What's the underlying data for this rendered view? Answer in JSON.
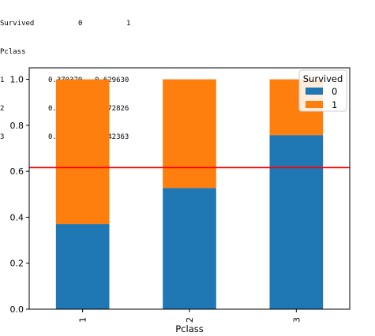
{
  "table": {
    "header": [
      "Survived",
      "0",
      "1"
    ],
    "index_name": "Pclass",
    "rows": [
      [
        "1",
        "0.370370",
        "0.629630"
      ],
      [
        "2",
        "0.527174",
        "0.472826"
      ],
      [
        "3",
        "0.757637",
        "0.242363"
      ]
    ]
  },
  "chart_data": {
    "type": "bar",
    "stacked": true,
    "categories": [
      "1",
      "2",
      "3"
    ],
    "series": [
      {
        "name": "0",
        "values": [
          0.37037,
          0.527174,
          0.757637
        ],
        "color": "#1f77b4"
      },
      {
        "name": "1",
        "values": [
          0.62963,
          0.472826,
          0.242363
        ],
        "color": "#ff7f0e"
      }
    ],
    "xlabel": "Pclass",
    "ylabel": "",
    "ylim": [
      0,
      1.05
    ],
    "yticks": [
      "0.0",
      "0.2",
      "0.4",
      "0.6",
      "0.8",
      "1.0"
    ],
    "hline": {
      "value": 0.6162,
      "color": "#ff0000"
    },
    "legend": {
      "title": "Survived",
      "position": "top-right"
    },
    "grid": false
  }
}
